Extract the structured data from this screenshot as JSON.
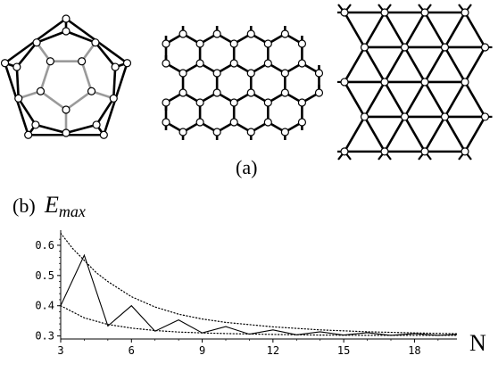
{
  "figure": {
    "panel_a_label": "(a)",
    "panel_b_label": "(b)",
    "ylabel_main": "E",
    "ylabel_sub": "max",
    "xlabel": "N"
  },
  "chart_data": {
    "type": "line",
    "xlabel": "N",
    "ylabel": "E_max",
    "xlim": [
      3,
      19.8
    ],
    "ylim": [
      0.29,
      0.65
    ],
    "x_ticks": [
      3,
      6,
      9,
      12,
      15,
      18
    ],
    "y_ticks": [
      0.3,
      0.4,
      0.5,
      0.6
    ],
    "x_tick_labels": [
      "3",
      "6",
      "9",
      "12",
      "15",
      "18"
    ],
    "y_tick_labels": [
      "0.3",
      "0.4",
      "0.5",
      "0.6"
    ],
    "grid": false,
    "series": [
      {
        "style": "solid",
        "x": [
          3,
          4,
          5,
          6,
          7,
          8,
          9,
          10,
          11,
          12,
          13,
          14,
          15,
          16,
          17,
          18,
          19,
          20
        ],
        "y": [
          0.4,
          0.567,
          0.333,
          0.4,
          0.316,
          0.353,
          0.31,
          0.331,
          0.306,
          0.32,
          0.304,
          0.314,
          0.303,
          0.311,
          0.302,
          0.308,
          0.302,
          0.306
        ]
      },
      {
        "style": "dotted",
        "x": [
          3,
          3.5,
          4,
          4.5,
          5,
          6,
          7,
          8,
          9,
          10,
          12,
          14,
          16,
          18,
          20
        ],
        "y": [
          0.64,
          0.59,
          0.55,
          0.51,
          0.48,
          0.43,
          0.396,
          0.372,
          0.356,
          0.345,
          0.33,
          0.32,
          0.314,
          0.31,
          0.307
        ]
      },
      {
        "style": "dotted",
        "x": [
          3,
          4,
          5,
          6,
          7,
          8,
          9,
          10,
          12,
          14,
          16,
          18,
          20
        ],
        "y": [
          0.4,
          0.36,
          0.338,
          0.326,
          0.318,
          0.313,
          0.31,
          0.308,
          0.305,
          0.303,
          0.302,
          0.302,
          0.302
        ]
      }
    ]
  }
}
